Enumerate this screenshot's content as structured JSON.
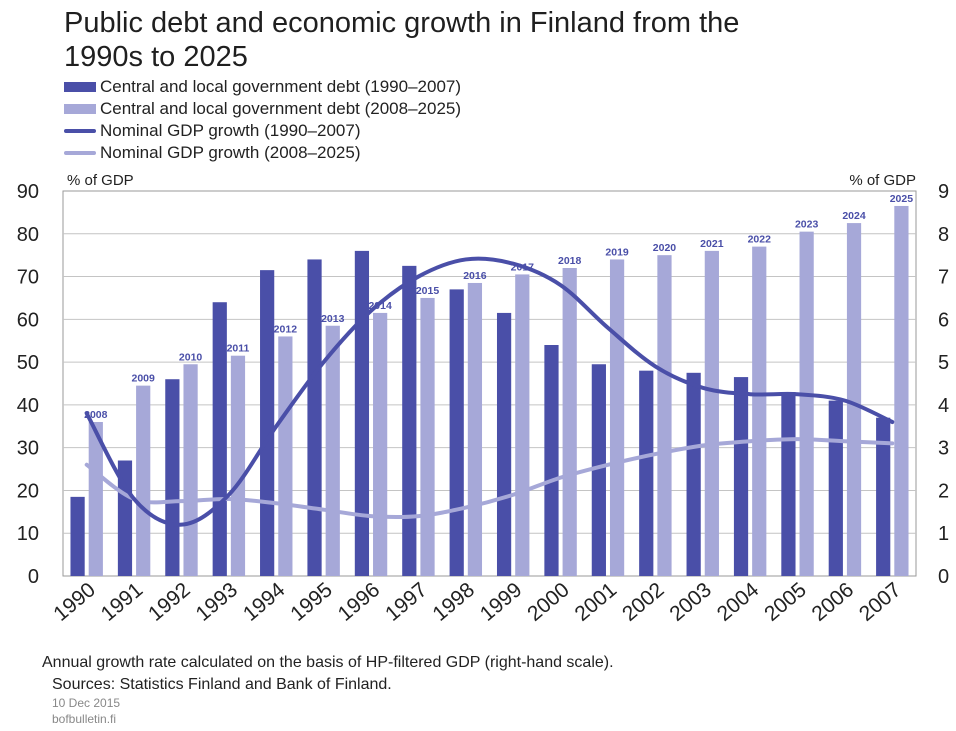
{
  "chart_data": {
    "type": "bar",
    "title": "Public debt and economic growth in Finland from the 1990s to 2025",
    "left_axis_label": "% of GDP",
    "right_axis_label": "% of GDP",
    "ylim_left": [
      0,
      90
    ],
    "ylim_right": [
      0,
      9
    ],
    "left_ticks": [
      0,
      10,
      20,
      30,
      40,
      50,
      60,
      70,
      80,
      90
    ],
    "right_ticks": [
      0,
      1,
      2,
      3,
      4,
      5,
      6,
      7,
      8,
      9
    ],
    "grid": true,
    "categories": [
      "1990",
      "1991",
      "1992",
      "1993",
      "1994",
      "1995",
      "1996",
      "1997",
      "1998",
      "1999",
      "2000",
      "2001",
      "2002",
      "2003",
      "2004",
      "2005",
      "2006",
      "2007"
    ],
    "series": [
      {
        "name": "Central and local government debt (1990–2007)",
        "kind": "bar",
        "axis": "left",
        "color": "#4a4fa8",
        "values": [
          18.5,
          27,
          46,
          64,
          71.5,
          74,
          76,
          72.5,
          67,
          61.5,
          54,
          49.5,
          48,
          47.5,
          46.5,
          43,
          41,
          37
        ]
      },
      {
        "name": "Central and local government debt (2008–2025)",
        "kind": "bar",
        "axis": "left",
        "color": "#a6a8d8",
        "labels": [
          "2008",
          "2009",
          "2010",
          "2011",
          "2012",
          "2013",
          "2014",
          "2015",
          "2016",
          "2017",
          "2018",
          "2019",
          "2020",
          "2021",
          "2022",
          "2023",
          "2024",
          "2025"
        ],
        "values": [
          36,
          44.5,
          49.5,
          51.5,
          56,
          58.5,
          61.5,
          65,
          68.5,
          70.5,
          72,
          74,
          75,
          76,
          77,
          80.5,
          82.5,
          86.5
        ]
      },
      {
        "name": "Nominal GDP growth (1990–2007)",
        "kind": "line",
        "axis": "right",
        "color": "#4a4fa8",
        "values": [
          3.8,
          1.8,
          1.2,
          1.9,
          3.5,
          5.0,
          6.2,
          7.0,
          7.4,
          7.3,
          6.8,
          5.8,
          4.9,
          4.4,
          4.25,
          4.25,
          4.1,
          3.6
        ]
      },
      {
        "name": "Nominal GDP growth (2008–2025)",
        "kind": "line",
        "axis": "right",
        "color": "#a6a8d8",
        "values": [
          2.6,
          1.8,
          1.75,
          1.8,
          1.7,
          1.55,
          1.4,
          1.4,
          1.6,
          1.9,
          2.3,
          2.6,
          2.85,
          3.05,
          3.15,
          3.2,
          3.15,
          3.1
        ]
      }
    ]
  },
  "footer": {
    "note": "Annual growth rate calculated on the basis of HP-filtered GDP (right-hand scale).",
    "sources": "Sources: Statistics Finland and Bank of Finland.",
    "date": "10 Dec 2015",
    "site": "bofbulletin.fi"
  }
}
